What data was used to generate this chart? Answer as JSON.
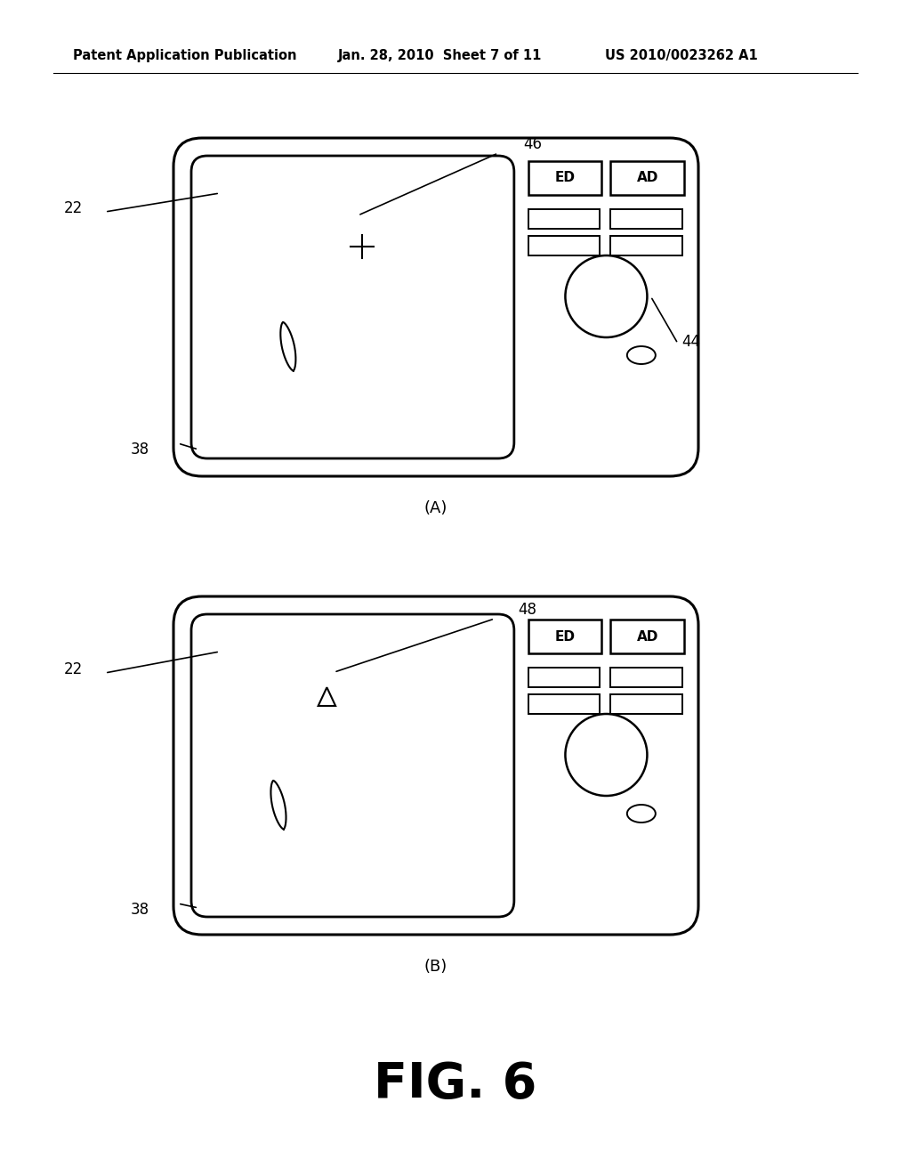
{
  "background_color": "#ffffff",
  "header_text": "Patent Application Publication",
  "header_date": "Jan. 28, 2010  Sheet 7 of 11",
  "header_patent": "US 2010/0023262 A1",
  "fig_label": "FIG. 6",
  "panel_A_label": "(A)",
  "panel_B_label": "(B)",
  "line_color": "#000000",
  "text_color": "#000000"
}
